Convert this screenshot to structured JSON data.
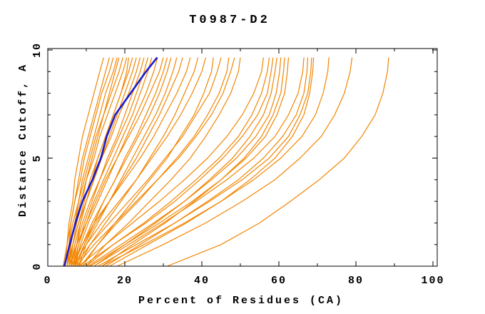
{
  "title": "T0987-D2",
  "colors": {
    "model_line": "#f28500",
    "highlight_line": "#1a1acd",
    "axis": "#000000",
    "background": "#ffffff"
  },
  "chart_data": {
    "type": "line",
    "title": "T0987-D2",
    "xlabel": "Percent of Residues (CA)",
    "ylabel": "Distance Cutoff, A",
    "xlim": [
      0,
      100
    ],
    "ylim": [
      0,
      10
    ],
    "x_major_ticks": [
      0,
      20,
      40,
      60,
      80,
      100
    ],
    "x_minor_step": 10,
    "y_major_ticks": [
      0,
      5,
      10
    ],
    "y_minor_step": 1,
    "grid": false,
    "legend": "none",
    "sample_y": [
      0,
      1,
      2,
      3,
      4,
      5,
      6,
      7,
      8,
      9,
      9.65
    ],
    "highlight_series": {
      "name": "highlighted-model",
      "color": "#1a1acd",
      "xs": [
        4.3,
        5.7,
        7.2,
        9.0,
        11.6,
        13.8,
        15.3,
        17.5,
        21.5,
        25.5,
        28.4
      ]
    },
    "series": [
      {
        "xs": [
          4.5,
          5.0,
          5.5,
          6.5,
          7.0,
          8.0,
          9.0,
          10.5,
          12.0,
          13.5,
          14.5
        ]
      },
      {
        "xs": [
          5.0,
          5.5,
          6.0,
          7.0,
          8.0,
          9.0,
          10.5,
          12.0,
          13.5,
          15.0,
          16.0
        ]
      },
      {
        "xs": [
          4.0,
          5.0,
          6.0,
          7.0,
          8.5,
          9.5,
          11.0,
          12.5,
          14.0,
          16.0,
          17.0
        ]
      },
      {
        "xs": [
          5.5,
          6.0,
          7.0,
          8.0,
          9.0,
          10.5,
          12.0,
          13.5,
          15.0,
          17.0,
          18.0
        ]
      },
      {
        "xs": [
          6.0,
          6.5,
          7.5,
          9.0,
          10.0,
          11.5,
          13.0,
          14.5,
          16.0,
          17.5,
          18.5
        ]
      },
      {
        "xs": [
          4.5,
          5.5,
          6.5,
          8.0,
          9.5,
          11.0,
          12.5,
          14.5,
          16.5,
          18.5,
          19.5
        ]
      },
      {
        "xs": [
          5.0,
          6.0,
          7.0,
          8.5,
          10.0,
          12.0,
          13.5,
          15.5,
          17.5,
          19.5,
          20.5
        ]
      },
      {
        "xs": [
          6.5,
          7.5,
          8.5,
          10.0,
          11.5,
          13.0,
          15.0,
          17.0,
          19.0,
          20.5,
          21.0
        ]
      },
      {
        "xs": [
          5.5,
          6.5,
          8.0,
          9.5,
          11.0,
          13.0,
          15.0,
          17.0,
          19.0,
          21.0,
          22.0
        ]
      },
      {
        "xs": [
          6.0,
          7.0,
          8.5,
          10.0,
          12.0,
          14.0,
          16.0,
          18.0,
          20.0,
          22.0,
          23.0
        ]
      },
      {
        "xs": [
          5.0,
          6.5,
          8.0,
          10.0,
          12.0,
          14.0,
          16.5,
          18.5,
          21.0,
          23.0,
          24.0
        ]
      },
      {
        "xs": [
          7.0,
          8.0,
          9.5,
          11.5,
          13.5,
          15.5,
          18.0,
          20.0,
          22.0,
          24.0,
          25.0
        ]
      },
      {
        "xs": [
          6.0,
          7.5,
          9.0,
          11.0,
          13.5,
          16.0,
          18.5,
          21.0,
          23.0,
          25.0,
          26.0
        ]
      },
      {
        "xs": [
          6.5,
          8.0,
          10.0,
          12.0,
          14.5,
          17.0,
          19.5,
          22.0,
          24.0,
          26.0,
          27.0
        ]
      },
      {
        "xs": [
          7.0,
          8.5,
          10.5,
          13.0,
          15.5,
          18.0,
          20.5,
          23.0,
          25.5,
          27.5,
          28.5
        ]
      },
      {
        "xs": [
          5.5,
          7.5,
          10.0,
          12.5,
          15.0,
          18.0,
          21.0,
          24.0,
          26.5,
          29.0,
          30.0
        ]
      },
      {
        "xs": [
          7.5,
          9.5,
          12.0,
          14.5,
          17.5,
          20.0,
          23.0,
          25.5,
          28.0,
          30.0,
          31.0
        ]
      },
      {
        "xs": [
          6.5,
          9.0,
          11.5,
          14.5,
          17.5,
          20.5,
          23.5,
          26.5,
          29.0,
          31.0,
          32.0
        ]
      },
      {
        "xs": [
          8.0,
          10.0,
          13.0,
          16.0,
          19.0,
          22.0,
          25.0,
          28.0,
          30.5,
          32.5,
          33.5
        ]
      },
      {
        "xs": [
          7.0,
          9.5,
          12.5,
          16.0,
          19.5,
          23.0,
          26.0,
          29.0,
          31.5,
          34.0,
          35.0
        ]
      },
      {
        "xs": [
          6.0,
          9.0,
          12.0,
          16.0,
          20.0,
          24.0,
          27.5,
          30.5,
          33.5,
          36.0,
          37.0
        ]
      },
      {
        "xs": [
          8.0,
          11.0,
          15.0,
          19.0,
          23.0,
          26.5,
          30.0,
          33.0,
          35.5,
          38.0,
          39.0
        ]
      },
      {
        "xs": [
          6.5,
          10.0,
          14.0,
          18.5,
          23.0,
          27.0,
          31.0,
          34.5,
          37.5,
          40.0,
          41.0
        ]
      },
      {
        "xs": [
          9.0,
          13.0,
          17.5,
          22.0,
          26.5,
          31.0,
          34.5,
          38.0,
          40.5,
          42.5,
          43.0
        ]
      },
      {
        "xs": [
          7.0,
          11.0,
          16.0,
          21.0,
          26.0,
          30.5,
          35.0,
          38.5,
          42.0,
          44.0,
          45.0
        ]
      },
      {
        "xs": [
          8.5,
          13.0,
          18.0,
          23.5,
          28.5,
          33.5,
          38.0,
          41.5,
          44.5,
          46.5,
          47.0
        ]
      },
      {
        "xs": [
          7.5,
          12.0,
          17.5,
          23.0,
          28.5,
          34.0,
          38.5,
          42.5,
          45.5,
          47.5,
          48.5
        ]
      },
      {
        "xs": [
          10.0,
          15.0,
          21.0,
          26.5,
          32.0,
          37.0,
          41.0,
          44.5,
          47.5,
          49.5,
          50.0
        ]
      },
      {
        "xs": [
          8.0,
          15.0,
          22.0,
          29.0,
          35.5,
          41.5,
          46.5,
          50.5,
          53.5,
          55.5,
          56.0
        ]
      },
      {
        "xs": [
          10.0,
          17.0,
          25.0,
          32.0,
          38.5,
          44.5,
          49.5,
          53.0,
          55.5,
          57.0,
          57.5
        ]
      },
      {
        "xs": [
          9.0,
          17.0,
          25.5,
          33.0,
          39.5,
          45.5,
          50.5,
          54.5,
          57.0,
          58.0,
          58.5
        ]
      },
      {
        "xs": [
          12.0,
          20.0,
          28.0,
          35.5,
          42.0,
          48.0,
          52.5,
          56.0,
          58.0,
          59.0,
          59.5
        ]
      },
      {
        "xs": [
          10.5,
          19.0,
          27.5,
          35.5,
          42.5,
          49.0,
          54.0,
          57.5,
          59.3,
          60.2,
          60.5
        ]
      },
      {
        "xs": [
          14.0,
          22.0,
          30.5,
          38.0,
          45.0,
          51.0,
          55.5,
          58.5,
          60.5,
          61.2,
          61.5
        ]
      },
      {
        "xs": [
          11.0,
          20.0,
          29.0,
          37.5,
          45.0,
          51.5,
          56.5,
          59.5,
          61.5,
          62.2,
          62.5
        ]
      },
      {
        "xs": [
          12.0,
          21.0,
          30.0,
          38.5,
          46.5,
          53.5,
          59.0,
          62.5,
          65.0,
          66.2,
          66.5
        ]
      },
      {
        "xs": [
          15.0,
          24.0,
          33.0,
          41.5,
          49.5,
          56.0,
          61.0,
          64.5,
          66.5,
          67.3,
          67.5
        ]
      },
      {
        "xs": [
          13.0,
          23.0,
          33.0,
          42.0,
          50.5,
          57.5,
          62.5,
          65.5,
          67.5,
          68.3,
          68.5
        ]
      },
      {
        "xs": [
          16.0,
          26.0,
          36.0,
          45.0,
          52.5,
          59.0,
          63.5,
          66.5,
          68.0,
          68.8,
          69.0
        ]
      },
      {
        "xs": [
          14.0,
          25.0,
          35.5,
          45.0,
          53.5,
          60.5,
          66.0,
          69.5,
          71.5,
          72.7,
          73.0
        ]
      },
      {
        "xs": [
          18.0,
          30.0,
          41.0,
          50.5,
          59.0,
          65.5,
          71.0,
          74.5,
          77.0,
          78.5,
          79.0
        ]
      },
      {
        "xs": [
          31.0,
          45.0,
          55.0,
          63.0,
          70.5,
          77.0,
          81.5,
          85.0,
          87.0,
          88.2,
          88.5
        ]
      }
    ]
  }
}
